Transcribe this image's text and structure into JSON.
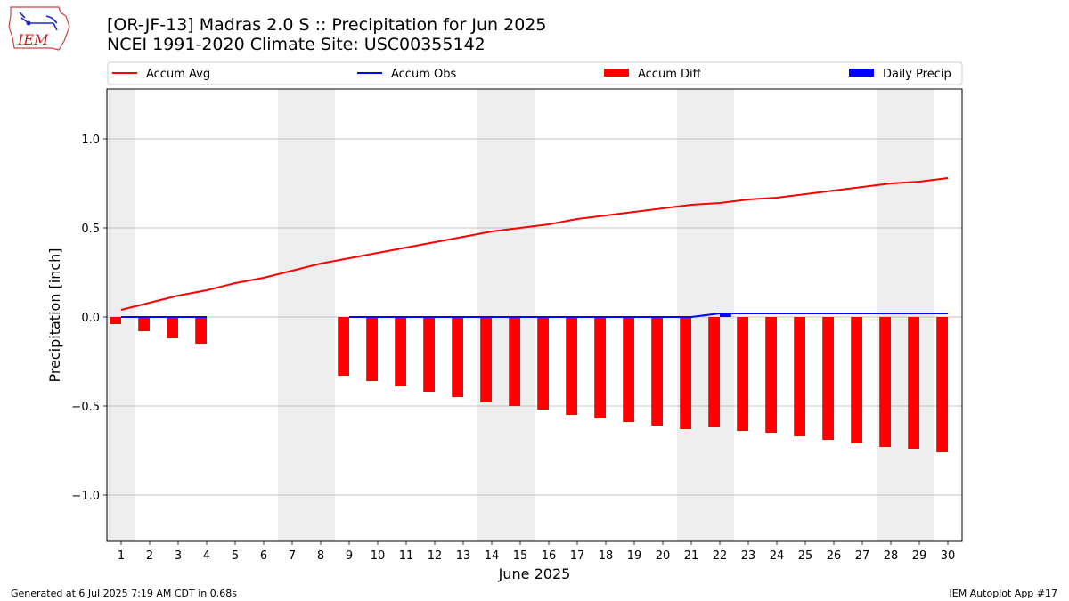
{
  "header": {
    "logo_text": "IEM",
    "title_line1": "[OR-JF-13] Madras 2.0 S :: Precipitation for Jun 2025",
    "title_line2": "NCEI 1991-2020 Climate Site: USC00355142"
  },
  "footer": {
    "left": "Generated at 6 Jul 2025 7:19 AM CDT in 0.68s",
    "right": "IEM Autoplot App #17"
  },
  "colors": {
    "accum_avg": "#ff0000",
    "accum_obs": "#0000ff",
    "accum_diff": "#ff0000",
    "daily_precip": "#0000ff",
    "weekend_band": "#eeeeee",
    "grid": "#b0b0b0"
  },
  "chart_data": {
    "type": "bar",
    "xlabel": "June 2025",
    "ylabel": "Precipitation [inch]",
    "xlim": [
      0.5,
      30.5
    ],
    "ylim": [
      -1.26,
      1.28
    ],
    "yticks": [
      -1.0,
      -0.5,
      0.0,
      0.5,
      1.0
    ],
    "ytick_labels": [
      "−1.0",
      "−0.5",
      "0.0",
      "0.5",
      "1.0"
    ],
    "grid": "y",
    "legend_placement": "top",
    "legend": [
      "Accum Avg",
      "Accum Obs",
      "Accum Diff",
      "Daily Precip"
    ],
    "days": [
      1,
      2,
      3,
      4,
      5,
      6,
      7,
      8,
      9,
      10,
      11,
      12,
      13,
      14,
      15,
      16,
      17,
      18,
      19,
      20,
      21,
      22,
      23,
      24,
      25,
      26,
      27,
      28,
      29,
      30
    ],
    "weekend_bands": [
      [
        0.5,
        1.5
      ],
      [
        6.5,
        8.5
      ],
      [
        13.5,
        15.5
      ],
      [
        20.5,
        22.5
      ],
      [
        27.5,
        29.5
      ]
    ],
    "series": [
      {
        "name": "Accum Avg",
        "kind": "line",
        "values": [
          0.04,
          0.08,
          0.12,
          0.15,
          0.19,
          0.22,
          0.26,
          0.3,
          0.33,
          0.36,
          0.39,
          0.42,
          0.45,
          0.48,
          0.5,
          0.52,
          0.55,
          0.57,
          0.59,
          0.61,
          0.63,
          0.64,
          0.66,
          0.67,
          0.69,
          0.71,
          0.73,
          0.75,
          0.76,
          0.78
        ]
      },
      {
        "name": "Accum Obs",
        "kind": "line",
        "values": [
          0,
          0,
          0,
          0,
          null,
          null,
          null,
          null,
          0,
          0,
          0,
          0,
          0,
          0,
          0,
          0,
          0,
          0,
          0,
          0,
          0,
          0.02,
          0.02,
          0.02,
          0.02,
          0.02,
          0.02,
          0.02,
          0.02,
          0.02
        ]
      },
      {
        "name": "Accum Diff",
        "kind": "bar",
        "values": [
          -0.04,
          -0.08,
          -0.12,
          -0.15,
          null,
          null,
          null,
          null,
          -0.33,
          -0.36,
          -0.39,
          -0.42,
          -0.45,
          -0.48,
          -0.5,
          -0.52,
          -0.55,
          -0.57,
          -0.59,
          -0.61,
          -0.63,
          -0.62,
          -0.64,
          -0.65,
          -0.67,
          -0.69,
          -0.71,
          -0.73,
          -0.74,
          -0.76
        ]
      },
      {
        "name": "Daily Precip",
        "kind": "bar",
        "values": [
          0,
          0,
          0,
          0,
          null,
          null,
          null,
          null,
          0,
          0,
          0,
          0,
          0,
          0,
          0,
          0,
          0,
          0,
          0,
          0,
          0,
          0.02,
          0,
          0,
          0,
          0,
          0,
          0,
          0,
          0
        ]
      }
    ]
  }
}
